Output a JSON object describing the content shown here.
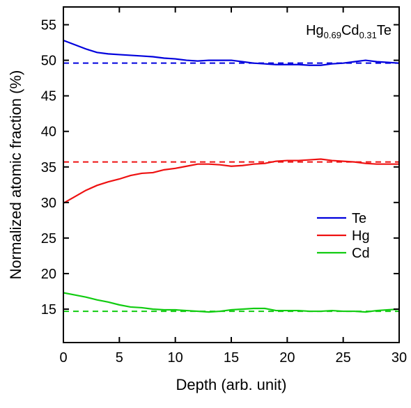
{
  "chart_data": {
    "type": "line",
    "x_label": "Depth (arb. unit)",
    "y_label": "Normalized atomic fraction  (%)",
    "annotation": [
      {
        "text": "Hg"
      },
      {
        "text": "0.69",
        "sub": true
      },
      {
        "text": "Cd"
      },
      {
        "text": "0.31",
        "sub": true
      },
      {
        "text": "Te"
      }
    ],
    "x": [
      0,
      1,
      2,
      3,
      4,
      5,
      6,
      7,
      8,
      9,
      10,
      11,
      12,
      13,
      14,
      15,
      16,
      17,
      18,
      19,
      20,
      21,
      22,
      23,
      24,
      25,
      26,
      27,
      28,
      29,
      30
    ],
    "series": [
      {
        "name": "Te",
        "color": "#0000dd",
        "values": [
          52.8,
          52.2,
          51.6,
          51.1,
          50.9,
          50.8,
          50.7,
          50.6,
          50.5,
          50.3,
          50.2,
          50.0,
          49.9,
          50.0,
          50.0,
          50.0,
          49.8,
          49.6,
          49.5,
          49.4,
          49.4,
          49.4,
          49.3,
          49.3,
          49.5,
          49.6,
          49.8,
          50.0,
          49.8,
          49.7,
          49.6
        ]
      },
      {
        "name": "Hg",
        "color": "#ee1111",
        "values": [
          29.9,
          30.8,
          31.7,
          32.4,
          32.9,
          33.3,
          33.8,
          34.1,
          34.2,
          34.6,
          34.8,
          35.1,
          35.4,
          35.4,
          35.3,
          35.1,
          35.2,
          35.4,
          35.5,
          35.8,
          35.9,
          35.9,
          36.0,
          36.1,
          35.9,
          35.8,
          35.7,
          35.5,
          35.4,
          35.4,
          35.4
        ]
      },
      {
        "name": "Cd",
        "color": "#11cc11",
        "values": [
          17.3,
          17.0,
          16.7,
          16.3,
          16.0,
          15.6,
          15.3,
          15.2,
          15.0,
          14.9,
          14.9,
          14.8,
          14.7,
          14.6,
          14.7,
          14.9,
          15.0,
          15.1,
          15.1,
          14.8,
          14.8,
          14.8,
          14.7,
          14.7,
          14.8,
          14.7,
          14.7,
          14.6,
          14.8,
          14.9,
          15.0
        ]
      }
    ],
    "reference_lines": [
      {
        "value": 49.6,
        "color": "#0000dd"
      },
      {
        "value": 35.7,
        "color": "#ee1111"
      },
      {
        "value": 14.7,
        "color": "#11cc11"
      }
    ],
    "xlim": [
      0,
      30
    ],
    "xticks": [
      0,
      5,
      10,
      15,
      20,
      25,
      30
    ],
    "ylim": [
      10.3,
      57.5
    ],
    "yticks": [
      15,
      20,
      25,
      30,
      35,
      40,
      45,
      50,
      55
    ],
    "legend": "lower right"
  }
}
